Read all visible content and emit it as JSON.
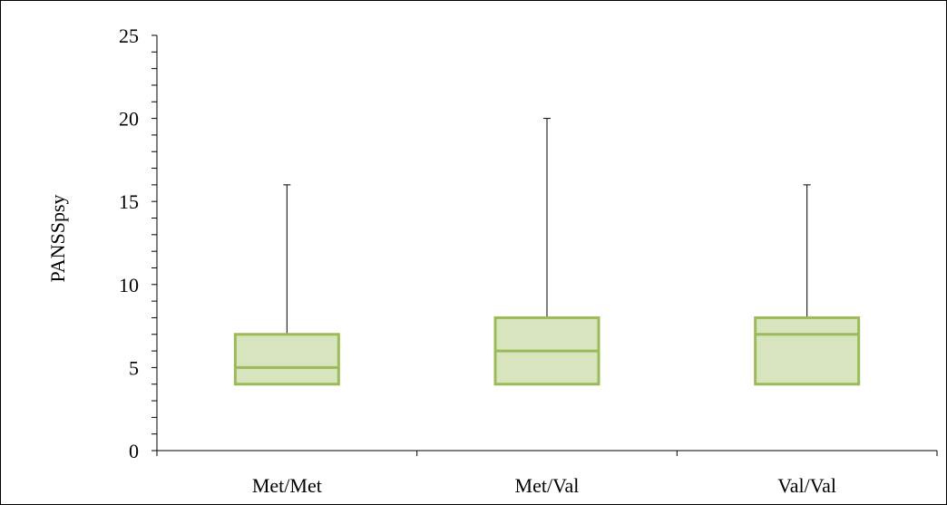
{
  "chart_data": {
    "type": "boxplot",
    "title": "",
    "xlabel": "",
    "ylabel": "PANSSpsy",
    "ylim": [
      0,
      25
    ],
    "yticks": [
      0,
      5,
      10,
      15,
      20,
      25
    ],
    "grid": false,
    "legend": "none",
    "categories": [
      "Met/Met",
      "Met/Val",
      "Val/Val"
    ],
    "boxes": [
      {
        "category": "Met/Met",
        "min": 4,
        "q1": 4,
        "median": 5,
        "q3": 7,
        "max": 16
      },
      {
        "category": "Met/Val",
        "min": 4,
        "q1": 4,
        "median": 6,
        "q3": 8,
        "max": 20
      },
      {
        "category": "Val/Val",
        "min": 4,
        "q1": 4,
        "median": 7,
        "q3": 8,
        "max": 16
      }
    ],
    "colors": {
      "box_fill": "#d7e4bd",
      "box_stroke": "#9bbb59",
      "whisker": "#000000",
      "axis": "#000000"
    }
  }
}
